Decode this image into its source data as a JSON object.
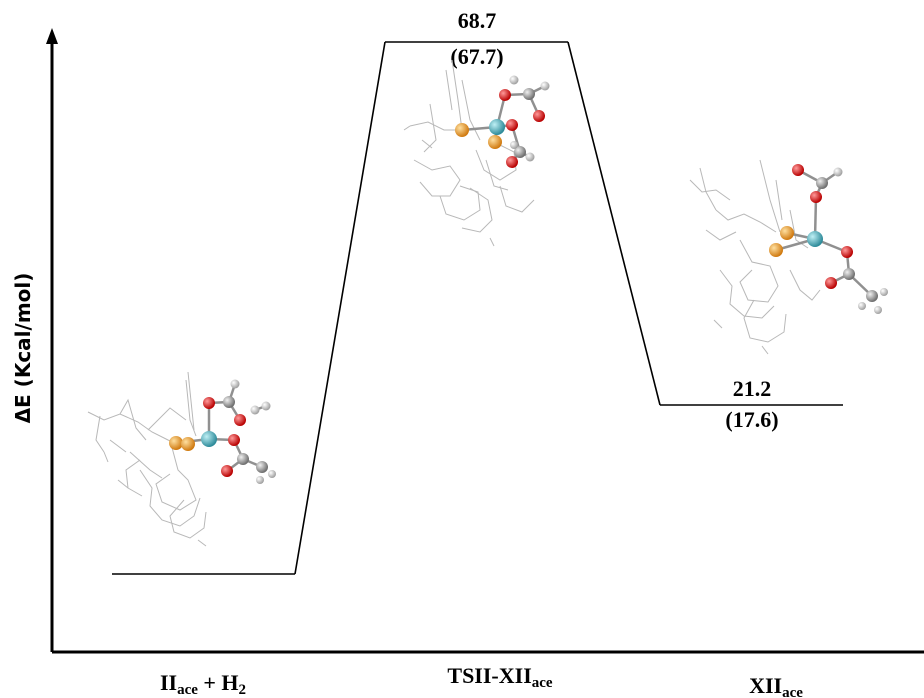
{
  "y_axis": {
    "label": "ΔE (Kcal/mol)"
  },
  "states": [
    {
      "id": "II_ace_H2",
      "label_main": "II",
      "label_sub": "ace",
      "label_mid": " + H",
      "label_sub2": "2",
      "energy_main": "",
      "energy_alt": "",
      "relative_energy": 0
    },
    {
      "id": "TSII_XII_ace",
      "label_main": "TSII-XII",
      "label_sub": "ace",
      "label_mid": "",
      "label_sub2": "",
      "energy_main": "68.7",
      "energy_alt": "(67.7)",
      "relative_energy": 68.7
    },
    {
      "id": "XII_ace",
      "label_main": "XII",
      "label_sub": "ace",
      "label_mid": "",
      "label_sub2": "",
      "energy_main": "21.2",
      "energy_alt": "(17.6)",
      "relative_energy": 21.2
    }
  ],
  "colors": {
    "line": "#000000",
    "atom_metal": "#2e8b9a",
    "atom_P": "#e08a1a",
    "atom_O": "#cc1111",
    "atom_C": "#8a8a8a",
    "atom_H": "#e8e8e8",
    "wireframe": "#b8b8b8"
  }
}
